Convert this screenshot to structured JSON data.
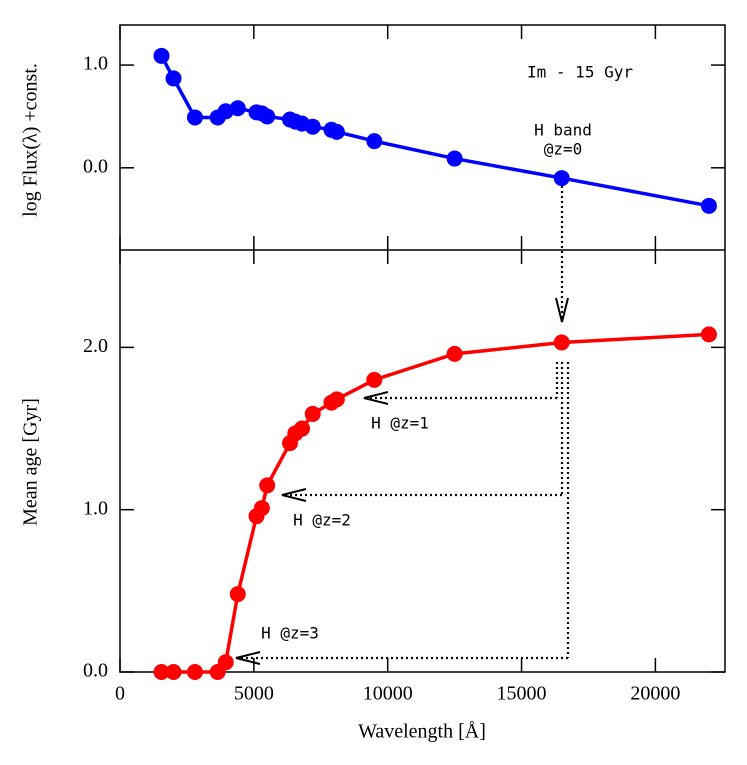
{
  "chart_data": [
    {
      "type": "line",
      "y_label": "log Flux(λ) +const.",
      "annotations": [
        "Im  -  15 Gyr",
        "H band",
        "@z=0"
      ],
      "x": [
        1550,
        2000,
        2800,
        3650,
        3950,
        4400,
        5100,
        5300,
        5500,
        6350,
        6550,
        6800,
        7200,
        7900,
        8100,
        9500,
        12500,
        16500,
        22000
      ],
      "xlim": [
        0,
        22600
      ],
      "ylim": [
        -0.8,
        1.39
      ],
      "yticks": [
        {
          "value": 0,
          "label": "0.0"
        },
        {
          "value": 1,
          "label": "1.0"
        }
      ],
      "series": [
        {
          "color": "#0000ff",
          "values": [
            1.09,
            0.87,
            0.49,
            0.49,
            0.55,
            0.58,
            0.54,
            0.53,
            0.5,
            0.47,
            0.45,
            0.43,
            0.4,
            0.37,
            0.35,
            0.26,
            0.09,
            -0.1,
            -0.37
          ]
        }
      ]
    },
    {
      "type": "line",
      "y_label": "Mean age  [Gyr]",
      "x_label": "Wavelength [Å]",
      "annotations": [
        "H @z=1",
        "H @z=2",
        "H @z=3"
      ],
      "x": [
        1550,
        2000,
        2800,
        3650,
        3950,
        4400,
        5100,
        5300,
        5500,
        6350,
        6550,
        6800,
        7200,
        7900,
        8100,
        9500,
        12500,
        16500,
        22000
      ],
      "xlim": [
        0,
        22600
      ],
      "xticks": [
        0,
        5000,
        10000,
        15000,
        20000
      ],
      "ylim": [
        0,
        2.6
      ],
      "yticks": [
        {
          "value": 0,
          "label": "0.0"
        },
        {
          "value": 1,
          "label": "1.0"
        },
        {
          "value": 2,
          "label": "2.0"
        }
      ],
      "series": [
        {
          "color": "#ff0000",
          "values": [
            0,
            0,
            0,
            0,
            0.06,
            0.48,
            0.96,
            1.01,
            1.15,
            1.41,
            1.47,
            1.5,
            1.59,
            1.66,
            1.68,
            1.8,
            1.96,
            2.03,
            2.08
          ]
        }
      ]
    }
  ]
}
